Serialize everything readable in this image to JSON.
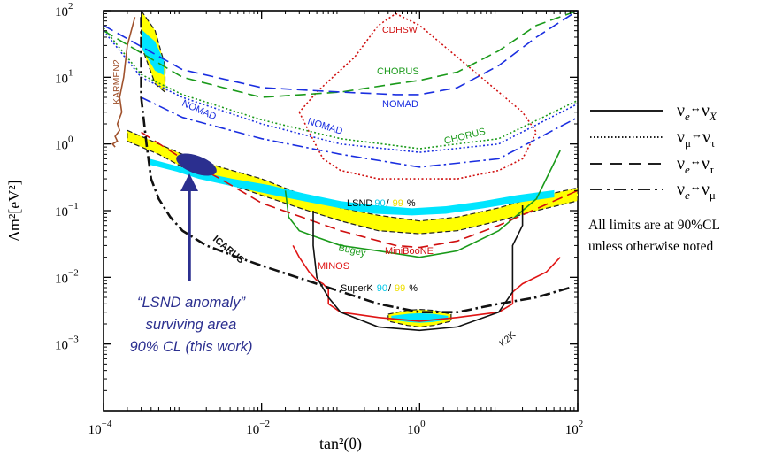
{
  "chart_data": {
    "type": "line",
    "xlabel": "tan²(θ)",
    "ylabel": "Δm²[eV²]",
    "x_scale": "log",
    "y_scale": "log",
    "xlim": [
      0.0001,
      100
    ],
    "ylim": [
      0.0001,
      100
    ],
    "x_ticks": [
      {
        "value": 0.0001,
        "base": "10",
        "exp": "−4"
      },
      {
        "value": 0.01,
        "base": "10",
        "exp": "−2"
      },
      {
        "value": 1,
        "base": "10",
        "exp": "0"
      },
      {
        "value": 100,
        "base": "10",
        "exp": "2"
      }
    ],
    "y_ticks": [
      {
        "value": 100,
        "base": "10",
        "exp": "2"
      },
      {
        "value": 10,
        "base": "10",
        "exp": "1"
      },
      {
        "value": 1,
        "base": "10",
        "exp": "0"
      },
      {
        "value": 0.1,
        "base": "10",
        "exp": "−1"
      },
      {
        "value": 0.01,
        "base": "10",
        "exp": "−2"
      },
      {
        "value": 0.001,
        "base": "10",
        "exp": "−3"
      }
    ],
    "grid": false,
    "legend_position": "right",
    "legend": [
      {
        "style": "solid",
        "label": "ν_e↔ν_X"
      },
      {
        "style": "dotted",
        "label": "ν_μ↔ν_τ"
      },
      {
        "style": "dashed",
        "label": "ν_e↔ν_τ"
      },
      {
        "style": "dashdot",
        "label": "ν_e↔ν_μ"
      }
    ],
    "legend_note": [
      "All limits are at 90%CL",
      "unless otherwise noted"
    ],
    "series": [
      {
        "name": "CDHSW",
        "color": "#d01010",
        "style": "dotted",
        "x": [
          0.03,
          0.04,
          0.06,
          0.1,
          0.3,
          1,
          3,
          10,
          20,
          30,
          20,
          5,
          2,
          1,
          0.5,
          0.3,
          0.15,
          0.05,
          0.03
        ],
        "y": [
          3,
          1.5,
          0.6,
          0.4,
          0.3,
          0.3,
          0.3,
          0.4,
          0.6,
          1.5,
          3,
          12,
          30,
          60,
          90,
          60,
          20,
          6,
          3
        ]
      },
      {
        "name": "CHORUS",
        "color": "#1a9a1a",
        "style": "dashed",
        "x": [
          0.0001,
          0.001,
          0.01,
          0.1,
          0.5,
          1,
          3,
          10,
          30,
          100
        ],
        "y": [
          50,
          10,
          5,
          6,
          8,
          9,
          12,
          25,
          60,
          100
        ]
      },
      {
        "name": "NOMAD",
        "color": "#1a2ee0",
        "style": "dashed",
        "x": [
          0.0001,
          0.001,
          0.01,
          0.1,
          0.5,
          1,
          3,
          10,
          30,
          100
        ],
        "y": [
          60,
          13,
          7,
          6,
          5.5,
          5.5,
          7,
          15,
          40,
          100
        ]
      },
      {
        "name": "NOMAD",
        "color": "#1a2ee0",
        "style": "dotted",
        "x": [
          0.0001,
          0.0003,
          0.001,
          0.01,
          0.1,
          1,
          10,
          100
        ],
        "y": [
          50,
          10,
          5,
          2,
          1,
          0.75,
          1,
          4
        ]
      },
      {
        "name": "CHORUS",
        "color": "#1a9a1a",
        "style": "dotted",
        "x": [
          0.0001,
          0.0003,
          0.001,
          0.01,
          0.1,
          1,
          10,
          100
        ],
        "y": [
          55,
          11,
          5.5,
          2.3,
          1.2,
          0.85,
          1.2,
          4.5
        ]
      },
      {
        "name": "NOMAD",
        "color": "#1a2ee0",
        "style": "dashdot",
        "x": [
          0.0003,
          0.001,
          0.01,
          0.1,
          1,
          10,
          100
        ],
        "y": [
          5,
          2.5,
          1.2,
          0.7,
          0.45,
          0.6,
          2.5
        ]
      },
      {
        "name": "KARMEN2",
        "color": "#a0522d",
        "style": "solid",
        "x": [
          0.00025,
          0.0002,
          0.00018,
          0.00016,
          0.00017,
          0.00015,
          0.00016,
          0.00014,
          0.00015,
          0.00013,
          0.00014
        ],
        "y": [
          80,
          30,
          10,
          5,
          3,
          2,
          1.6,
          1.3,
          1.1,
          1,
          0.9
        ]
      },
      {
        "name": "Bugey",
        "color": "#1a9a1a",
        "style": "solid",
        "x": [
          0.02,
          0.022,
          0.03,
          0.05,
          0.1,
          0.3,
          1,
          3,
          10,
          30,
          60
        ],
        "y": [
          0.2,
          0.08,
          0.05,
          0.04,
          0.03,
          0.025,
          0.02,
          0.025,
          0.05,
          0.15,
          0.8
        ]
      },
      {
        "name": "MINOS",
        "color": "#e01515",
        "style": "solid",
        "x": [
          0.025,
          0.03,
          0.04,
          0.05,
          0.06,
          0.07,
          0.07,
          0.1,
          0.3,
          1,
          3,
          10,
          15,
          15,
          20,
          40,
          60
        ],
        "y": [
          0.03,
          0.02,
          0.012,
          0.009,
          0.008,
          0.0065,
          0.004,
          0.003,
          0.0025,
          0.0022,
          0.0025,
          0.003,
          0.004,
          0.006,
          0.008,
          0.012,
          0.02
        ]
      },
      {
        "name": "MiniBooNE",
        "color": "#d01010",
        "style": "dashed",
        "x": [
          0.0003,
          0.001,
          0.003,
          0.01,
          0.1,
          0.5,
          1,
          3,
          10,
          100
        ],
        "y": [
          1.5,
          0.6,
          0.3,
          0.13,
          0.05,
          0.03,
          0.028,
          0.035,
          0.06,
          0.2
        ]
      },
      {
        "name": "K2K",
        "color": "#111111",
        "style": "solid",
        "x": [
          0.045,
          0.045,
          0.05,
          0.07,
          0.1,
          0.3,
          1,
          3,
          10,
          15,
          15,
          20,
          20
        ],
        "y": [
          0.1,
          0.03,
          0.01,
          0.005,
          0.003,
          0.0018,
          0.0016,
          0.0018,
          0.003,
          0.006,
          0.03,
          0.06,
          0.12
        ]
      },
      {
        "name": "ICARUS",
        "color": "#111111",
        "style": "dashdot",
        "x": [
          0.0003,
          0.0003,
          0.0003,
          0.00035,
          0.0004,
          0.0005,
          0.0007,
          0.001,
          0.002,
          0.005,
          0.01,
          0.05,
          0.3,
          1,
          3,
          10,
          30,
          80
        ],
        "y": [
          80,
          20,
          5,
          1,
          0.3,
          0.15,
          0.08,
          0.05,
          0.03,
          0.02,
          0.015,
          0.008,
          0.004,
          0.003,
          0.003,
          0.004,
          0.005,
          0.007
        ]
      }
    ],
    "regions": [
      {
        "name": "LSND",
        "conf_levels": [
          "90",
          "99"
        ],
        "conf_colors": [
          "#00e5ff",
          "#ffff00"
        ],
        "x": [
          0.0002,
          0.0005,
          0.001,
          0.003,
          0.01,
          0.03,
          0.1,
          0.3,
          1,
          3,
          10,
          30,
          100
        ],
        "y_upper": [
          1.6,
          1.0,
          0.7,
          0.45,
          0.3,
          0.18,
          0.11,
          0.085,
          0.07,
          0.08,
          0.11,
          0.16,
          0.22
        ],
        "y_lower": [
          1.1,
          0.7,
          0.45,
          0.28,
          0.17,
          0.11,
          0.07,
          0.05,
          0.045,
          0.05,
          0.07,
          0.1,
          0.14
        ]
      },
      {
        "name": "LSND",
        "conf_levels": [
          "90",
          "99"
        ],
        "conf_colors": [
          "#00e5ff",
          "#ffff00"
        ],
        "x": [
          0.0003,
          0.00045,
          0.0006
        ],
        "y_upper": [
          100,
          50,
          15
        ],
        "y_lower": [
          30,
          8,
          6
        ]
      },
      {
        "name": "SuperK",
        "conf_levels": [
          "90",
          "99"
        ],
        "conf_colors": [
          "#00e5ff",
          "#ffff00"
        ],
        "x": [
          0.4,
          0.7,
          1,
          1.5,
          2.5
        ],
        "y_upper": [
          0.0028,
          0.0032,
          0.0033,
          0.0032,
          0.0028
        ],
        "y_lower": [
          0.0022,
          0.0019,
          0.0018,
          0.0019,
          0.0022
        ]
      }
    ],
    "annotations": [
      {
        "text": "“LSND anomaly” surviving area 90% CL (this work)",
        "color": "#2b2f8f",
        "x": 0.0001,
        "y": 0.5,
        "lines": [
          "“LSND anomaly”",
          "surviving area",
          "90% CL (this work)"
        ]
      }
    ]
  }
}
